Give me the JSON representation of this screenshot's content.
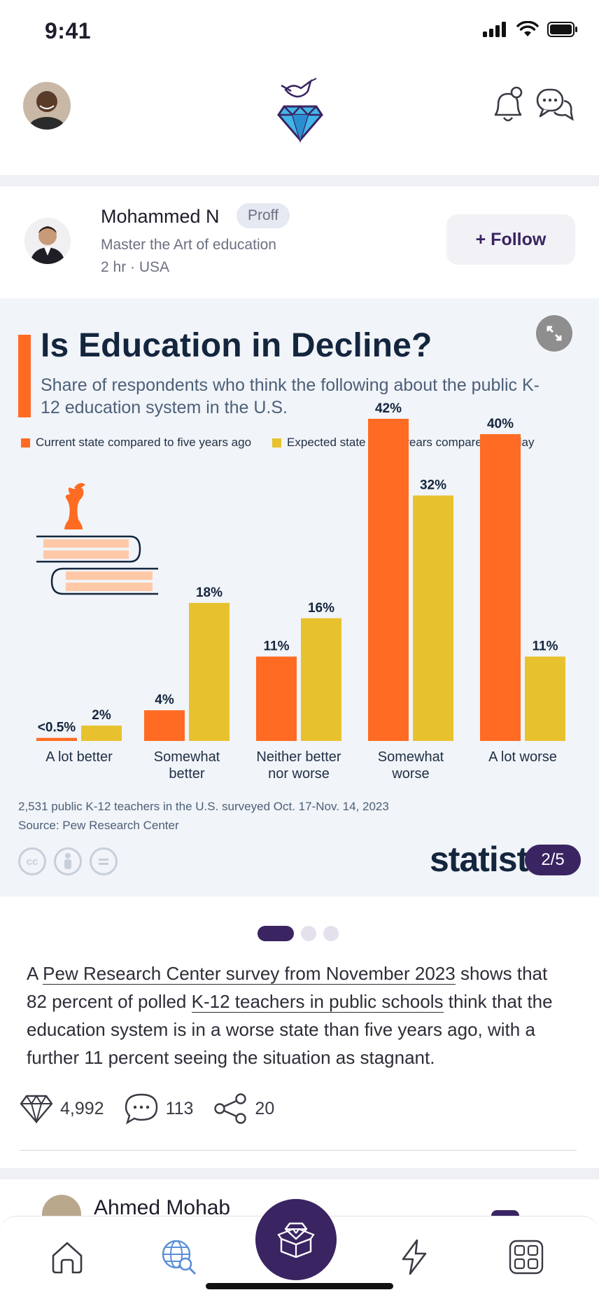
{
  "status_bar": {
    "time": "9:41"
  },
  "header": {
    "avatar": "user-avatar",
    "logo": "diamond-dove-logo",
    "icons": [
      "bell-icon",
      "chat-icon"
    ]
  },
  "post": {
    "author": {
      "name": "Mohammed N",
      "badge": "Proff",
      "tagline": "Master the Art of education",
      "meta": "2 hr · USA"
    },
    "follow_label": "+ Follow",
    "page_counter": "2/5",
    "body": {
      "t1": "A ",
      "link1": "Pew Research Center survey from November 2023",
      "t2": " shows that 82 percent of polled ",
      "link2": "K-12 teachers in public schools",
      "t3": " think that the education system is in a worse state than five years ago, with a further 11 percent seeing the situation as stagnant."
    },
    "stats": {
      "gems": "4,992",
      "comments": "113",
      "shares": "20"
    }
  },
  "next_post": {
    "author_name": "Ahmed Mohab"
  },
  "chart_data": {
    "type": "bar",
    "title": "Is Education in Decline?",
    "subtitle": "Share of respondents who think the following about the public K-12 education system in the U.S.",
    "categories": [
      "A lot better",
      "Somewhat better",
      "Neither better nor worse",
      "Somewhat worse",
      "A lot worse"
    ],
    "series": [
      {
        "name": "Current state compared to five years ago",
        "color": "#ff6b22",
        "values": [
          0.4,
          4,
          11,
          42,
          40
        ],
        "labels": [
          "<0.5%",
          "4%",
          "11%",
          "42%",
          "40%"
        ]
      },
      {
        "name": "Expected state in five years compared to today",
        "color": "#e8c22e",
        "values": [
          2,
          18,
          16,
          32,
          11
        ],
        "labels": [
          "2%",
          "18%",
          "16%",
          "32%",
          "11%"
        ]
      }
    ],
    "ylim": [
      0,
      42
    ],
    "grid": false,
    "legend": "top-left",
    "note_1": "2,531 public K-12 teachers in the U.S. surveyed Oct. 17-Nov. 14, 2023",
    "note_2": "Source: Pew Research Center",
    "brand": "statista",
    "license_icons": [
      "cc",
      "by",
      "nd"
    ]
  }
}
